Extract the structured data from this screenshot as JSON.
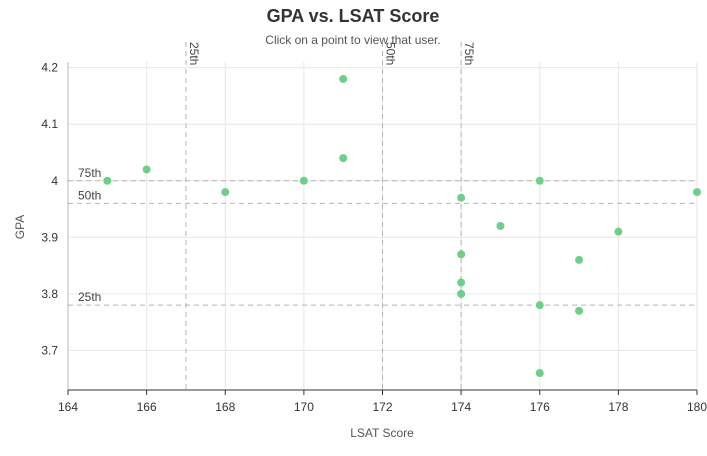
{
  "chart_data": {
    "type": "scatter",
    "title": "GPA vs. LSAT Score",
    "subtitle": "Click on a point to view that user.",
    "xlabel": "LSAT Score",
    "ylabel": "GPA",
    "xlim": [
      164,
      180
    ],
    "ylim": [
      3.63,
      4.21
    ],
    "xticks": [
      "164",
      "166",
      "168",
      "170",
      "172",
      "174",
      "176",
      "178",
      "180"
    ],
    "yticks": [
      "4.2",
      "4.1",
      "4",
      "3.9",
      "3.8",
      "3.7"
    ],
    "grid": true,
    "point_color": "#6fcf86",
    "points": [
      {
        "x": 165,
        "y": 4.0
      },
      {
        "x": 166,
        "y": 4.02
      },
      {
        "x": 168,
        "y": 3.98
      },
      {
        "x": 170,
        "y": 4.0
      },
      {
        "x": 171,
        "y": 4.18
      },
      {
        "x": 171,
        "y": 4.04
      },
      {
        "x": 174,
        "y": 3.97
      },
      {
        "x": 174,
        "y": 3.87
      },
      {
        "x": 174,
        "y": 3.82
      },
      {
        "x": 174,
        "y": 3.8
      },
      {
        "x": 175,
        "y": 3.92
      },
      {
        "x": 176,
        "y": 4.0
      },
      {
        "x": 176,
        "y": 3.78
      },
      {
        "x": 176,
        "y": 3.66
      },
      {
        "x": 177,
        "y": 3.86
      },
      {
        "x": 177,
        "y": 3.77
      },
      {
        "x": 178,
        "y": 3.91
      },
      {
        "x": 180,
        "y": 3.98
      }
    ],
    "percentiles": {
      "lsat": [
        {
          "label": "25th",
          "value": 167
        },
        {
          "label": "50th",
          "value": 172
        },
        {
          "label": "75th",
          "value": 174
        }
      ],
      "gpa": [
        {
          "label": "75th",
          "value": 4.0
        },
        {
          "label": "50th",
          "value": 3.96
        },
        {
          "label": "25th",
          "value": 3.78
        }
      ]
    }
  }
}
